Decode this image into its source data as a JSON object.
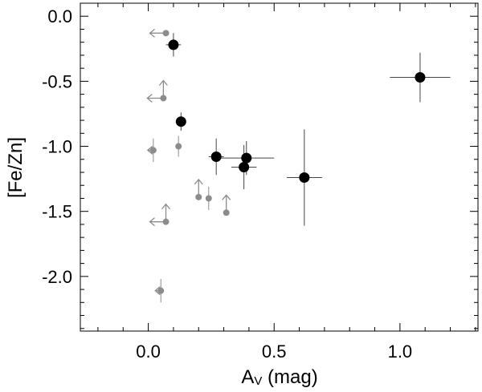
{
  "chart_data": {
    "type": "scatter",
    "xlabel_main": "A",
    "xlabel_sub": "V",
    "xlabel_unit": " (mag)",
    "ylabel": "[Fe/Zn]",
    "xlim": [
      -0.27,
      1.31
    ],
    "ylim": [
      -2.42,
      0.1
    ],
    "x_ticks": [
      {
        "value": 0.0,
        "label": "0.0"
      },
      {
        "value": 0.5,
        "label": "0.5"
      },
      {
        "value": 1.0,
        "label": "1.0"
      }
    ],
    "y_ticks": [
      {
        "value": 0.0,
        "label": "0.0"
      },
      {
        "value": -0.5,
        "label": "-0.5"
      },
      {
        "value": -1.0,
        "label": "-1.0"
      },
      {
        "value": -1.5,
        "label": "-1.5"
      },
      {
        "value": -2.0,
        "label": "-2.0"
      }
    ],
    "x_minor_step": 0.1,
    "y_minor_step": 0.1,
    "grid": false,
    "series": [
      {
        "marker": "large-filled-circle",
        "color": "#000000",
        "points": [
          {
            "x": 0.1,
            "y": -0.22,
            "xerr": 0.03,
            "yerr": 0.09
          },
          {
            "x": 0.13,
            "y": -0.81,
            "xerr": 0.0,
            "yerr": 0.07
          },
          {
            "x": 0.27,
            "y": -1.08,
            "xerr": 0.03,
            "yerr": 0.14
          },
          {
            "x": 0.38,
            "y": -1.16,
            "xerr": 0.05,
            "yerr": 0.17
          },
          {
            "x": 0.39,
            "y": -1.09,
            "xerr": 0.11,
            "yerr": 0.13
          },
          {
            "x": 0.62,
            "y": -1.24,
            "xerr": 0.07,
            "yerr": 0.37
          },
          {
            "x": 1.08,
            "y": -0.47,
            "xerr": 0.12,
            "yerr": 0.19
          }
        ]
      },
      {
        "marker": "small-filled-circle",
        "color": "#8c8c8c",
        "points": [
          {
            "x": 0.07,
            "y": -0.13,
            "xerr": 0,
            "yerr": 0,
            "limit": "upper-x"
          },
          {
            "x": 0.06,
            "y": -0.63,
            "xerr": 0,
            "yerr": 0,
            "limit": "upper-x-lower-y"
          },
          {
            "x": 0.02,
            "y": -1.03,
            "xerr": 0,
            "yerr": 0.09,
            "limit": "upper-x-short"
          },
          {
            "x": 0.12,
            "y": -1.0,
            "xerr": 0,
            "yerr": 0.08
          },
          {
            "x": 0.2,
            "y": -1.39,
            "xerr": 0,
            "yerr": 0,
            "limit": "lower-y"
          },
          {
            "x": 0.24,
            "y": -1.4,
            "xerr": 0,
            "yerr": 0.09
          },
          {
            "x": 0.31,
            "y": -1.51,
            "xerr": 0,
            "yerr": 0,
            "limit": "lower-y"
          },
          {
            "x": 0.07,
            "y": -1.58,
            "xerr": 0,
            "yerr": 0,
            "limit": "upper-x-lower-y"
          },
          {
            "x": 0.05,
            "y": -2.11,
            "xerr": 0,
            "yerr": 0.09,
            "limit": "upper-x-short"
          }
        ]
      }
    ]
  }
}
